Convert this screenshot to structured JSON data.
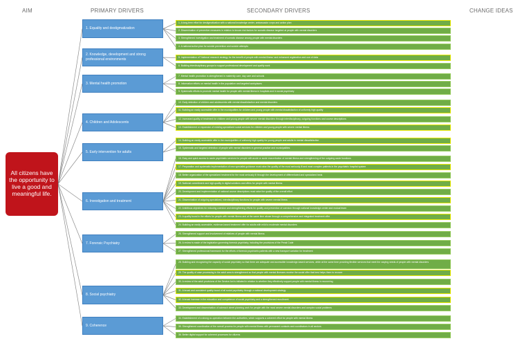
{
  "headers": {
    "aim": "AIM",
    "primary": "PRIMARY DRIVERS",
    "secondary": "SECONDARY DRIVERS",
    "change": "CHANGE IDEAS"
  },
  "aim": "All citizens have the opportunity to live a good and meaningful life.",
  "primary": [
    "1. Equality and destigmatization",
    "2. Knowledge, development and strong professional environments",
    "3. Mental health promotion",
    "4. Children and Adolescents",
    "5. Early intervention for adults",
    "6. Investigation and treatment",
    "7. Forensic Psychiatry",
    "8. Social psychiatry",
    "9. Coherence"
  ],
  "secondary": [
    "1. A long-term effort for destigmatization with a national knowledge center, ambassador corps and action plan",
    "2. Dissemination of preventive measures in relation to known risk factors for somatic disease targeted at people with mental disorders",
    "3. Strengthened investigation and treatment of somatic disease among people with mental disorders",
    "4. A national action plan for suicide prevention and suicide attempts",
    "5. Implementation of 'National research strategy for the benefit of people with mental illness' and enhanced registration and use of data",
    "6. Building interdisciplinary groups to support professional development and quality work",
    "7. Mental health promotion is strengthened in maternity care, day care and schools",
    "8. Information efforts on mental health in the population and targeted workplaces",
    "9. Systematic efforts to promote mental health for people with mental illness in hospitals and in social psychiatry",
    "10. Early detection of children and adolescents with mental dissatisfaction and mental disorders",
    "11. Building an easily accessible offer in the municipalities for children and young people with mental dissatisfaction of uniformly high quality",
    "12. Increased quality of treatment for children and young people with severe mental disorders through interdisciplinary, outgoing functions and course descriptions",
    "13. Establishment or expansion of existing specialized social services for children and young people with severe mental illness",
    "14. Building an easily accessible offer in the municipalities of uniformly high quality for young people and adults in mental dissatisfaction",
    "15. Systematic and targeted detection of people with mental disorders in general practice and municipalities",
    "16. Easy and quick access to acute psychiatric services for people with acute or acute exacerbation of mental illness and strengthening of the outgoing acute functions",
    "17. Preparation and systematic implementation of new specialist guidance must raise the quality of the most seriously ill and most complex patients in the psychiatric hospital system",
    "18. Better organization of the specialized treatment for the most seriously ill through the development of differentiated and specialized beds",
    "19. National commitment and high quality in digital solutions and offers for people with mental illness",
    "20. Development and implementation of national course descriptions must raise the quality of the overall effort",
    "21. Dissemination of outgoing specialized, interdisciplinary functions for people with severe mental illness",
    "22. Ambitious objectives for reducing coercion and strengthening efforts for quality and prevention of coercion through national knowledge center and mutual team",
    "23. A quality boost in the efforts for people with mental illness and at the same time abuse through a comprehensive and integrated treatment offer",
    "24. Building an easily accessible, evidence-based treatment offer for adults with mild to moderate mental disorders",
    "25. Strengthened support and involvement of relatives of people with mental illness",
    "26. A review is made of the legislation governing forensic psychiatry, including the provisions of the Penal Code",
    "27. Strengthened professional framework for the efforts of forensic psychiatric patients with a new transport variation for treatment",
    "28. Building and recognizing the capacity of social psychiatry so that there are adequate and accessible knowledge-based services, while at the same time providing flexible services that meet the varying needs of people with mental disorders",
    "29. The quality of case processing in the adult area is strengthened so that people with mental illnesses receive the social offer that best helps them to recover",
    "30. A review of the adult provisions of the Service Act is initiated in relation to whether they effectively support people with mental illness in recovering",
    "31. A broad and consistent quality boost of all social psychiatry through a national development strategy",
    "32. A broad increase in the education and competence of social psychiatry and a strengthened recruitment",
    "33. Development and dissemination of outreach street planning work for people with the most severe mental disorders and complex social problems",
    "34. Establishment of a strong co-operation between the authorities, which supports a coherent effort for people with mental illness",
    "35. Strengthened coordination of the overall process for people with mental illness with permanent contacts and coordinators in all sectors",
    "36. Better digital support for coherent processes for citizens"
  ],
  "colors": {
    "aim": "#c0141b",
    "primary": "#5b9bd5",
    "secondary": "#70ad47",
    "highlight": "#e8e800",
    "connector": "#8a8a8a"
  }
}
